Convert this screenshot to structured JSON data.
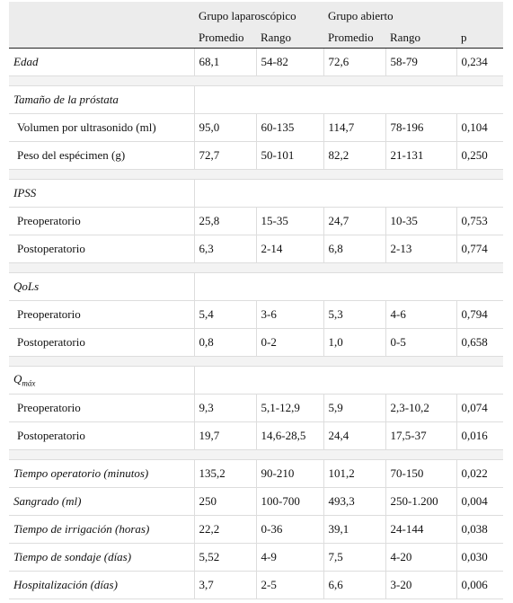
{
  "table": {
    "groups": [
      "Grupo laparoscópico",
      "Grupo abierto"
    ],
    "columns": [
      "Promedio",
      "Rango",
      "Promedio",
      "Rango",
      "p"
    ],
    "blocks": [
      [
        {
          "label": "Edad",
          "cells": [
            "68,1",
            "54-82",
            "72,6",
            "58-79",
            "0,234"
          ]
        }
      ],
      [
        {
          "label": "Tamaño de la próstata",
          "items": [
            {
              "label": "Volumen por ultrasonido (ml)",
              "cells": [
                "95,0",
                "60-135",
                "114,7",
                "78-196",
                "0,104"
              ]
            },
            {
              "label": "Peso del espécimen (g)",
              "cells": [
                "72,7",
                "50-101",
                "82,2",
                "21-131",
                "0,250"
              ]
            }
          ]
        }
      ],
      [
        {
          "label": "IPSS",
          "items": [
            {
              "label": "Preoperatorio",
              "cells": [
                "25,8",
                "15-35",
                "24,7",
                "10-35",
                "0,753"
              ]
            },
            {
              "label": "Postoperatorio",
              "cells": [
                "6,3",
                "2-14",
                "6,8",
                "2-13",
                "0,774"
              ]
            }
          ]
        }
      ],
      [
        {
          "label": "QoLs",
          "items": [
            {
              "label": "Preoperatorio",
              "cells": [
                "5,4",
                "3-6",
                "5,3",
                "4-6",
                "0,794"
              ]
            },
            {
              "label": "Postoperatorio",
              "cells": [
                "0,8",
                "0-2",
                "1,0",
                "0-5",
                "0,658"
              ]
            }
          ]
        }
      ],
      [
        {
          "label": "Q",
          "label_sub": "máx",
          "items": [
            {
              "label": "Preoperatorio",
              "cells": [
                "9,3",
                "5,1-12,9",
                "5,9",
                "2,3-10,2",
                "0,074"
              ]
            },
            {
              "label": "Postoperatorio",
              "cells": [
                "19,7",
                "14,6-28,5",
                "24,4",
                "17,5-37",
                "0,016"
              ]
            }
          ]
        }
      ],
      [
        {
          "label": "Tiempo operatorio (minutos)",
          "cells": [
            "135,2",
            "90-210",
            "101,2",
            "70-150",
            "0,022"
          ]
        },
        {
          "label": "Sangrado (ml)",
          "cells": [
            "250",
            "100-700",
            "493,3",
            "250-1.200",
            "0,004"
          ]
        },
        {
          "label": "Tiempo de irrigación (horas)",
          "cells": [
            "22,2",
            "0-36",
            "39,1",
            "24-144",
            "0,038"
          ]
        },
        {
          "label": "Tiempo de sondaje (días)",
          "cells": [
            "5,52",
            "4-9",
            "7,5",
            "4-20",
            "0,030"
          ]
        },
        {
          "label": "Hospitalización (días)",
          "cells": [
            "3,7",
            "2-5",
            "6,6",
            "3-20",
            "0,006"
          ]
        }
      ]
    ]
  }
}
